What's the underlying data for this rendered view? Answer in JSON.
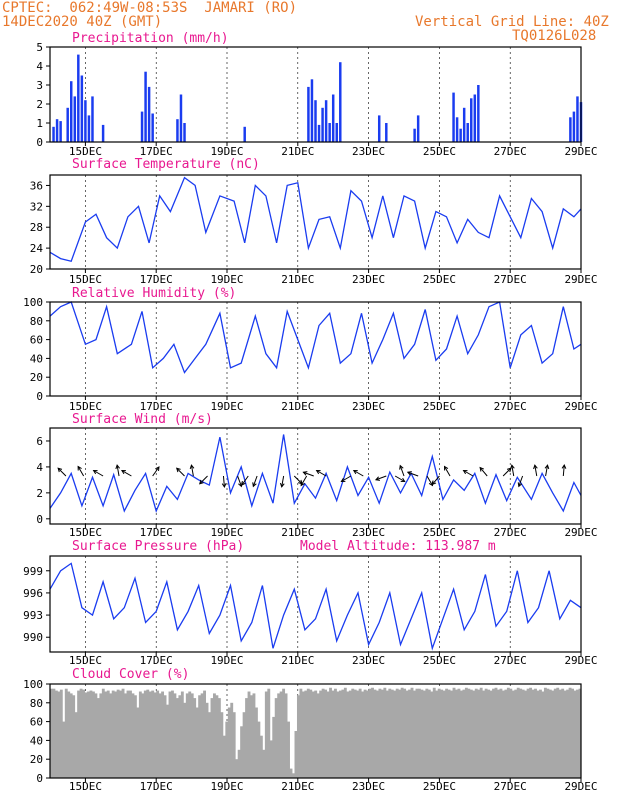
{
  "header": {
    "line1_left": "CPTEC:  062:49W-08:53S  JAMARI (RO)",
    "line2_left": "14DEC2020 40Z (GMT)",
    "line1_right": "Vertical Grid Line: 40Z",
    "line2_right": "TQ0126L028"
  },
  "colors": {
    "line": "#1a3cf0",
    "bar": "#1a3cf0",
    "cloud": "#a8a8a8",
    "title": "#e81890",
    "header": "#e8782c",
    "arrow": "#000000"
  },
  "x_ticks": [
    "15DEC",
    "17DEC",
    "19DEC",
    "21DEC",
    "23DEC",
    "25DEC",
    "27DEC",
    "29DEC"
  ],
  "panels": {
    "precip": {
      "title": "Precipitation (mm/h)"
    },
    "temp": {
      "title": "Surface Temperature (nC)"
    },
    "rh": {
      "title": "Relative Humidity (%)"
    },
    "wind": {
      "title": "Surface Wind (m/s)"
    },
    "press": {
      "title": "Surface Pressure (hPa)",
      "model_altitude": "Model Altitude: 113.987 m"
    },
    "cloud": {
      "title": "Cloud Cover (%)"
    }
  },
  "chart_data": [
    {
      "type": "bar",
      "title": "Precipitation (mm/h)",
      "ylabel": "",
      "ylim": [
        0,
        5
      ],
      "yticks": [
        "0",
        "1",
        "2",
        "3",
        "4",
        "5"
      ],
      "x_range_days": [
        14.0,
        29.0
      ],
      "x": [
        14.1,
        14.2,
        14.3,
        14.5,
        14.6,
        14.7,
        14.8,
        14.9,
        15.0,
        15.1,
        15.2,
        15.5,
        16.6,
        16.7,
        16.8,
        16.9,
        17.6,
        17.7,
        17.8,
        19.5,
        21.3,
        21.4,
        21.5,
        21.6,
        21.7,
        21.8,
        21.9,
        22.0,
        22.1,
        22.2,
        23.3,
        23.5,
        24.3,
        24.4,
        25.4,
        25.5,
        25.6,
        25.7,
        25.8,
        25.9,
        26.0,
        26.1,
        28.7,
        28.8,
        28.9,
        29.0
      ],
      "values": [
        0.8,
        1.2,
        1.1,
        1.8,
        3.2,
        2.4,
        4.6,
        3.5,
        2.2,
        1.4,
        2.4,
        0.9,
        1.6,
        3.7,
        2.9,
        1.5,
        1.2,
        2.5,
        1.0,
        0.8,
        2.9,
        3.3,
        2.2,
        0.9,
        1.8,
        2.2,
        1.0,
        2.5,
        1.0,
        4.2,
        1.4,
        1.0,
        0.7,
        1.4,
        2.6,
        1.3,
        0.7,
        1.8,
        1.0,
        2.3,
        2.5,
        3.0,
        1.3,
        1.6,
        2.4,
        2.1
      ]
    },
    {
      "type": "line",
      "title": "Surface Temperature (nC)",
      "ylabel": "",
      "ylim": [
        20,
        38
      ],
      "yticks": [
        "20",
        "24",
        "28",
        "32",
        "36"
      ],
      "x": [
        14.0,
        14.3,
        14.6,
        15.0,
        15.3,
        15.6,
        15.9,
        16.2,
        16.5,
        16.8,
        17.1,
        17.4,
        17.8,
        18.1,
        18.4,
        18.8,
        19.2,
        19.5,
        19.8,
        20.1,
        20.4,
        20.7,
        21.0,
        21.3,
        21.6,
        21.9,
        22.2,
        22.5,
        22.8,
        23.1,
        23.4,
        23.7,
        24.0,
        24.3,
        24.6,
        24.9,
        25.2,
        25.5,
        25.8,
        26.1,
        26.4,
        26.7,
        27.0,
        27.3,
        27.6,
        27.9,
        28.2,
        28.5,
        28.8,
        29.0
      ],
      "values": [
        23.2,
        22.0,
        21.5,
        29.0,
        30.5,
        26.0,
        24.0,
        30.0,
        32.0,
        25.0,
        34.0,
        31.0,
        37.5,
        36.0,
        27.0,
        34.0,
        33.0,
        25.0,
        36.0,
        34.0,
        25.0,
        36.0,
        36.5,
        24.0,
        29.5,
        30.0,
        24.0,
        35.0,
        33.0,
        26.0,
        34.0,
        26.0,
        34.0,
        33.0,
        24.0,
        31.0,
        30.0,
        25.0,
        29.5,
        27.0,
        26.0,
        34.0,
        30.0,
        26.0,
        33.5,
        31.0,
        24.0,
        31.5,
        30.0,
        31.5
      ]
    },
    {
      "type": "line",
      "title": "Relative Humidity (%)",
      "ylabel": "",
      "ylim": [
        0,
        100
      ],
      "yticks": [
        "0",
        "20",
        "40",
        "60",
        "80",
        "100"
      ],
      "x": [
        14.0,
        14.3,
        14.6,
        15.0,
        15.3,
        15.6,
        15.9,
        16.3,
        16.6,
        16.9,
        17.2,
        17.5,
        17.8,
        18.1,
        18.4,
        18.8,
        19.1,
        19.4,
        19.8,
        20.1,
        20.4,
        20.7,
        21.0,
        21.3,
        21.6,
        21.9,
        22.2,
        22.5,
        22.8,
        23.1,
        23.4,
        23.7,
        24.0,
        24.3,
        24.6,
        24.9,
        25.2,
        25.5,
        25.8,
        26.1,
        26.4,
        26.7,
        27.0,
        27.3,
        27.6,
        27.9,
        28.2,
        28.5,
        28.8,
        29.0
      ],
      "values": [
        85,
        95,
        100,
        55,
        60,
        95,
        45,
        55,
        90,
        30,
        40,
        55,
        25,
        40,
        55,
        88,
        30,
        35,
        85,
        45,
        30,
        90,
        60,
        30,
        75,
        88,
        35,
        45,
        88,
        35,
        60,
        88,
        40,
        55,
        92,
        38,
        50,
        85,
        45,
        65,
        95,
        100,
        30,
        65,
        75,
        35,
        45,
        95,
        50,
        55
      ]
    },
    {
      "type": "line",
      "title": "Surface Wind (m/s)",
      "ylabel": "",
      "ylim": [
        -0.4,
        7
      ],
      "yticks": [
        "0",
        "2",
        "4",
        "6"
      ],
      "x": [
        14.0,
        14.3,
        14.6,
        14.9,
        15.2,
        15.5,
        15.8,
        16.1,
        16.4,
        16.7,
        17.0,
        17.3,
        17.6,
        17.9,
        18.2,
        18.5,
        18.8,
        19.1,
        19.4,
        19.7,
        20.0,
        20.3,
        20.6,
        20.9,
        21.2,
        21.5,
        21.8,
        22.1,
        22.4,
        22.7,
        23.0,
        23.3,
        23.6,
        23.9,
        24.2,
        24.5,
        24.8,
        25.1,
        25.4,
        25.7,
        26.0,
        26.3,
        26.6,
        26.9,
        27.2,
        27.6,
        27.9,
        28.2,
        28.5,
        28.8,
        29.0
      ],
      "values": [
        0.8,
        2.0,
        3.5,
        1.0,
        3.2,
        1.0,
        3.4,
        0.6,
        2.2,
        3.5,
        0.6,
        2.5,
        1.5,
        3.5,
        3.0,
        2.6,
        6.3,
        2.0,
        4.0,
        1.0,
        3.5,
        1.2,
        6.5,
        1.2,
        2.7,
        1.6,
        3.5,
        1.4,
        4.0,
        1.8,
        3.2,
        1.2,
        3.6,
        2.0,
        3.5,
        1.8,
        4.8,
        1.5,
        3.0,
        2.2,
        3.5,
        1.2,
        3.4,
        1.4,
        3.2,
        1.5,
        3.5,
        2.0,
        0.6,
        2.8,
        1.8
      ]
    },
    {
      "type": "line",
      "title": "Surface Pressure (hPa)",
      "ylabel": "",
      "ylim": [
        988,
        1001
      ],
      "yticks": [
        "990",
        "993",
        "996",
        "999"
      ],
      "x": [
        14.0,
        14.3,
        14.6,
        14.9,
        15.2,
        15.5,
        15.8,
        16.1,
        16.4,
        16.7,
        17.0,
        17.3,
        17.6,
        17.9,
        18.2,
        18.5,
        18.8,
        19.1,
        19.4,
        19.7,
        20.0,
        20.3,
        20.6,
        20.9,
        21.2,
        21.5,
        21.8,
        22.1,
        22.4,
        22.7,
        23.0,
        23.3,
        23.6,
        23.9,
        24.2,
        24.5,
        24.8,
        25.1,
        25.4,
        25.7,
        26.0,
        26.3,
        26.6,
        26.9,
        27.2,
        27.5,
        27.8,
        28.1,
        28.4,
        28.7,
        29.0
      ],
      "values": [
        996.5,
        999.0,
        1000.0,
        994.0,
        993.0,
        997.5,
        992.5,
        994.0,
        998.0,
        992.0,
        993.5,
        997.5,
        991.0,
        993.5,
        997.0,
        990.5,
        993.0,
        997.0,
        989.5,
        992.0,
        997.0,
        988.5,
        993.0,
        996.5,
        991.0,
        992.5,
        996.5,
        989.5,
        993.0,
        996.0,
        989.0,
        992.0,
        996.0,
        989.0,
        992.5,
        996.0,
        988.5,
        992.5,
        996.5,
        991.0,
        993.5,
        998.5,
        991.5,
        993.5,
        999.0,
        992.0,
        994.0,
        999.0,
        992.5,
        995.0,
        994.0
      ]
    },
    {
      "type": "bar",
      "title": "Cloud Cover (%)",
      "ylabel": "",
      "ylim": [
        0,
        100
      ],
      "yticks": [
        "0",
        "20",
        "40",
        "60",
        "80",
        "100"
      ],
      "x_range_days": [
        14.0,
        29.0
      ],
      "values": [
        95,
        95,
        93,
        92,
        94,
        60,
        95,
        92,
        90,
        88,
        70,
        93,
        95,
        94,
        91,
        92,
        93,
        92,
        90,
        85,
        90,
        95,
        92,
        93,
        90,
        93,
        92,
        94,
        93,
        95,
        90,
        93,
        93,
        90,
        88,
        75,
        92,
        90,
        93,
        94,
        92,
        93,
        91,
        93,
        90,
        92,
        88,
        78,
        92,
        93,
        90,
        85,
        88,
        92,
        80,
        90,
        92,
        90,
        85,
        75,
        88,
        90,
        93,
        80,
        70,
        85,
        90,
        88,
        85,
        70,
        45,
        60,
        75,
        80,
        70,
        20,
        30,
        55,
        70,
        85,
        92,
        88,
        90,
        75,
        60,
        45,
        30,
        92,
        95,
        40,
        65,
        85,
        90,
        92,
        95,
        90,
        60,
        10,
        5,
        50,
        88,
        95,
        92,
        93,
        95,
        94,
        92,
        93,
        90,
        93,
        95,
        94,
        92,
        96,
        93,
        95,
        92,
        93,
        94,
        96,
        92,
        93,
        95,
        94,
        93,
        95,
        92,
        94,
        93,
        95,
        96,
        94,
        93,
        95,
        94,
        96,
        93,
        95,
        94,
        93,
        95,
        94,
        96,
        95,
        93,
        94,
        96,
        93,
        95,
        95,
        94,
        93,
        95,
        94,
        92,
        96,
        93,
        95,
        94,
        93,
        95,
        94,
        93,
        96,
        94,
        95,
        93,
        94,
        96,
        95,
        94,
        93,
        95,
        94,
        96,
        93,
        95,
        94,
        93,
        95,
        96,
        94,
        95,
        93,
        94,
        96,
        95,
        93,
        94,
        96,
        95,
        94,
        93,
        95,
        96,
        94,
        95,
        93,
        94,
        92,
        96,
        95,
        94,
        93,
        95,
        96,
        94,
        95,
        93,
        94,
        96,
        95,
        93,
        94,
        95
      ]
    }
  ],
  "wind_arrows": [
    {
      "day": 14.45,
      "ang": 315
    },
    {
      "day": 14.95,
      "ang": 330
    },
    {
      "day": 15.5,
      "ang": 300
    },
    {
      "day": 15.95,
      "ang": 350
    },
    {
      "day": 16.3,
      "ang": 300
    },
    {
      "day": 16.9,
      "ang": 35
    },
    {
      "day": 17.8,
      "ang": 315
    },
    {
      "day": 18.05,
      "ang": 350
    },
    {
      "day": 18.45,
      "ang": 225
    },
    {
      "day": 18.9,
      "ang": 175
    },
    {
      "day": 19.3,
      "ang": 160
    },
    {
      "day": 19.6,
      "ang": 215
    },
    {
      "day": 19.85,
      "ang": 200
    },
    {
      "day": 20.6,
      "ang": 190
    },
    {
      "day": 20.9,
      "ang": 135
    },
    {
      "day": 21.25,
      "ang": 210
    },
    {
      "day": 21.45,
      "ang": 290
    },
    {
      "day": 21.8,
      "ang": 300
    },
    {
      "day": 22.5,
      "ang": 240
    },
    {
      "day": 22.85,
      "ang": 300
    },
    {
      "day": 23.5,
      "ang": 250
    },
    {
      "day": 23.75,
      "ang": 120
    },
    {
      "day": 24.0,
      "ang": 340
    },
    {
      "day": 24.4,
      "ang": 290
    },
    {
      "day": 24.65,
      "ang": 150
    },
    {
      "day": 25.0,
      "ang": 220
    },
    {
      "day": 25.3,
      "ang": 330
    },
    {
      "day": 25.95,
      "ang": 300
    },
    {
      "day": 26.35,
      "ang": 320
    },
    {
      "day": 26.8,
      "ang": 45
    },
    {
      "day": 27.1,
      "ang": 350
    },
    {
      "day": 27.35,
      "ang": 200
    },
    {
      "day": 27.75,
      "ang": 350
    },
    {
      "day": 28.0,
      "ang": 10
    },
    {
      "day": 28.5,
      "ang": 5
    }
  ]
}
